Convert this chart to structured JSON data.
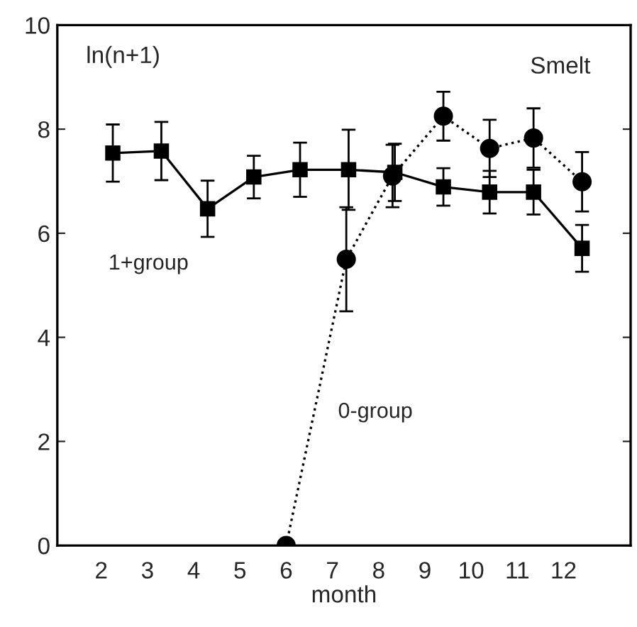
{
  "chart_data": {
    "type": "line",
    "title": "Smelt",
    "ylabel": "ln(n+1)",
    "xlabel": "month",
    "xlim": [
      1.05,
      13.45
    ],
    "xticks": [
      2,
      3,
      4,
      5,
      6,
      7,
      8,
      9,
      10,
      11,
      12
    ],
    "ylim": [
      0,
      10
    ],
    "yticks": [
      0,
      2,
      4,
      6,
      8,
      10
    ],
    "grid": false,
    "legend": false,
    "series": [
      {
        "name": "1+group",
        "color": "#000000",
        "marker": "square",
        "line_style": "solid",
        "x": [
          2.25,
          3.3,
          4.3,
          5.3,
          6.3,
          7.35,
          8.35,
          9.4,
          10.4,
          11.35,
          12.4
        ],
        "values": [
          7.54,
          7.58,
          6.47,
          7.08,
          7.22,
          7.22,
          7.17,
          6.89,
          6.79,
          6.79,
          5.71
        ],
        "errors": [
          0.55,
          0.56,
          0.54,
          0.41,
          0.52,
          0.77,
          0.55,
          0.36,
          0.41,
          0.43,
          0.45
        ]
      },
      {
        "name": "0-group",
        "color": "#000000",
        "marker": "circle",
        "line_style": "dotted",
        "x": [
          6.0,
          7.3,
          8.3,
          9.4,
          10.4,
          11.35,
          12.4
        ],
        "values": [
          0,
          5.5,
          7.1,
          8.25,
          7.63,
          7.83,
          6.99
        ],
        "errors": [
          null,
          1.0,
          0.6,
          0.47,
          0.55,
          0.57,
          0.57
        ]
      }
    ]
  }
}
